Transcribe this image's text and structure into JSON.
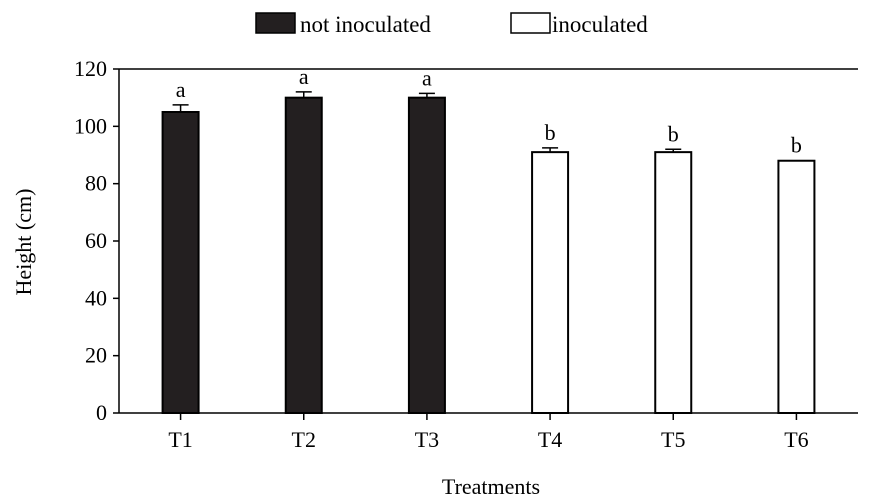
{
  "chart_data": {
    "type": "bar",
    "categories": [
      "T1",
      "T2",
      "T3",
      "T4",
      "T5",
      "T6"
    ],
    "values": [
      105,
      110,
      110,
      91,
      91,
      88
    ],
    "errors": [
      2.5,
      2,
      1.5,
      1.5,
      1,
      0
    ],
    "groups": [
      "not inoculated",
      "not inoculated",
      "not inoculated",
      "inoculated",
      "inoculated",
      "inoculated"
    ],
    "significance": [
      "a",
      "a",
      "a",
      "b",
      "b",
      "b"
    ],
    "legend": [
      {
        "name": "not inoculated",
        "fill": "#231f20"
      },
      {
        "name": "inoculated",
        "fill": "#ffffff"
      }
    ],
    "legend_position": "top-center",
    "xlabel": "Treatments",
    "ylabel": "Height (cm)",
    "ylim": [
      0,
      120
    ],
    "yticks": [
      0,
      20,
      40,
      60,
      80,
      100,
      120
    ],
    "grid": false
  }
}
